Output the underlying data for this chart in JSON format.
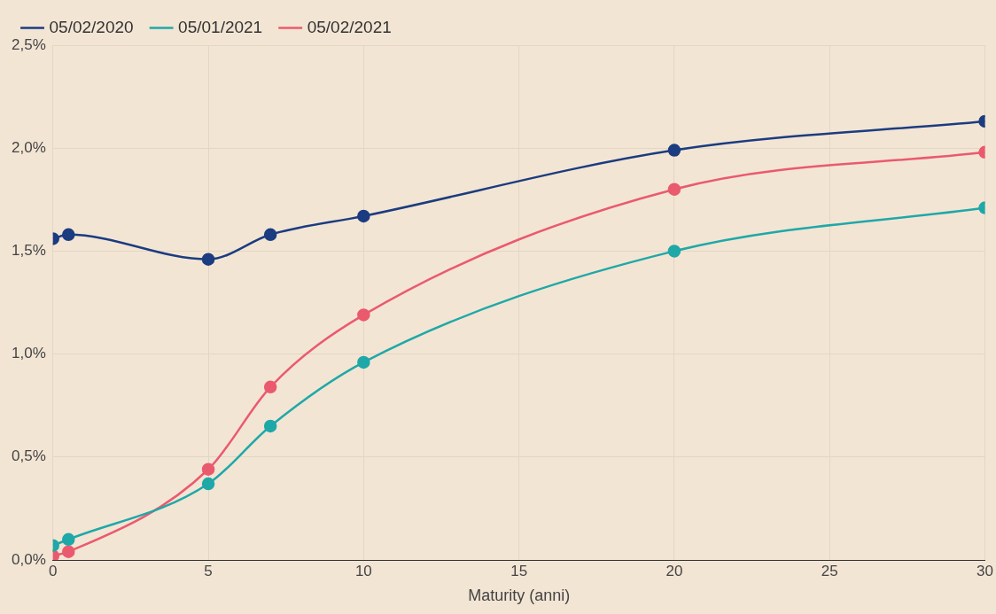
{
  "chart_data": {
    "type": "line",
    "xlabel": "Maturity (anni)",
    "legend": "top left",
    "grid": true,
    "marker": "circle",
    "line_style": "solid",
    "xlim": [
      0,
      30
    ],
    "xticks": [
      0,
      5,
      10,
      15,
      20,
      25,
      30
    ],
    "ylim": [
      0,
      2.5
    ],
    "yticks": [
      {
        "value": 0,
        "label": "0,0%"
      },
      {
        "value": 0.5,
        "label": "0,5%"
      },
      {
        "value": 1,
        "label": "1,0%"
      },
      {
        "value": 1.5,
        "label": "1,5%"
      },
      {
        "value": 2,
        "label": "2,0%"
      },
      {
        "value": 2.5,
        "label": "2,5%"
      }
    ],
    "x": [
      0,
      0.5,
      5,
      7,
      10,
      20,
      30
    ],
    "series": [
      {
        "name": "05/02/2020",
        "color": "#1b3c80",
        "values": [
          1.56,
          1.58,
          1.46,
          1.58,
          1.67,
          1.99,
          2.13
        ]
      },
      {
        "name": "05/01/2021",
        "color": "#1fa8a8",
        "values": [
          0.07,
          0.1,
          0.37,
          0.65,
          0.96,
          1.5,
          1.71
        ]
      },
      {
        "name": "05/02/2021",
        "color": "#ea5a6e",
        "values": [
          0.02,
          0.04,
          0.44,
          0.84,
          1.19,
          1.8,
          1.98
        ]
      }
    ]
  }
}
